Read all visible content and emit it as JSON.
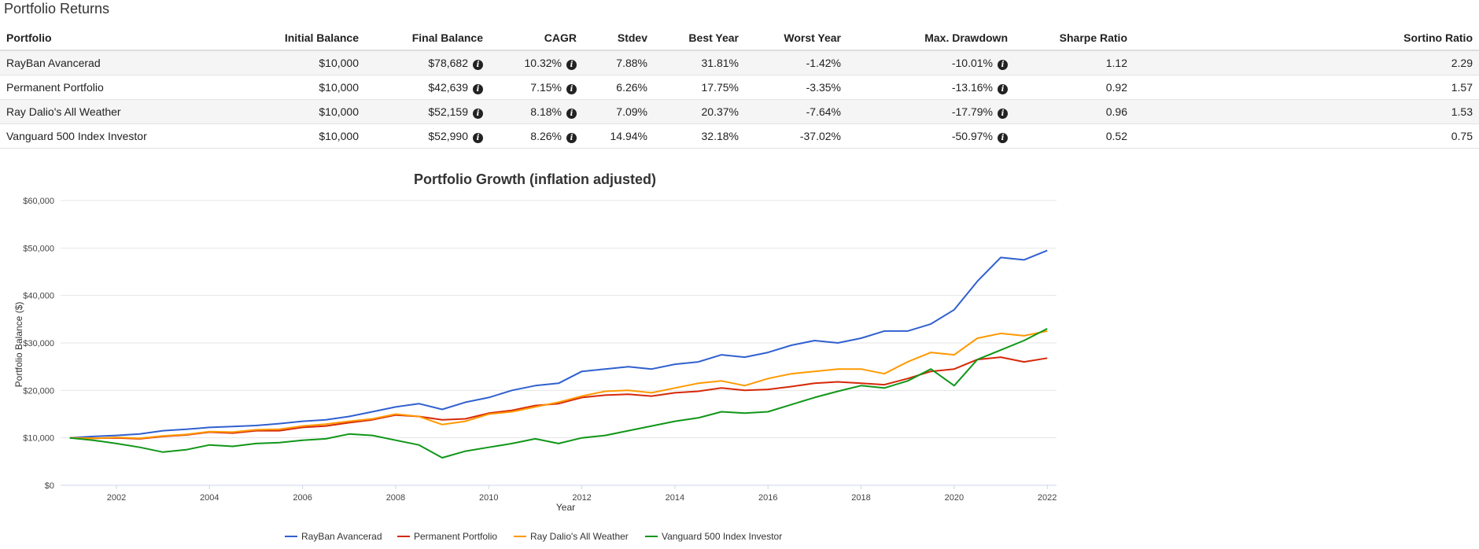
{
  "section_title": "Portfolio Returns",
  "table": {
    "headers": [
      "Portfolio",
      "Initial Balance",
      "Final Balance",
      "CAGR",
      "Stdev",
      "Best Year",
      "Worst Year",
      "Max. Drawdown",
      "Sharpe Ratio",
      "Sortino Ratio"
    ],
    "rows": [
      {
        "portfolio": "RayBan Avancerad",
        "initial": "$10,000",
        "final": "$78,682",
        "cagr": "10.32%",
        "stdev": "7.88%",
        "best": "31.81%",
        "worst": "-1.42%",
        "drawdown": "-10.01%",
        "sharpe": "1.12",
        "sortino": "2.29"
      },
      {
        "portfolio": "Permanent Portfolio",
        "initial": "$10,000",
        "final": "$42,639",
        "cagr": "7.15%",
        "stdev": "6.26%",
        "best": "17.75%",
        "worst": "-3.35%",
        "drawdown": "-13.16%",
        "sharpe": "0.92",
        "sortino": "1.57"
      },
      {
        "portfolio": "Ray Dalio's All Weather",
        "initial": "$10,000",
        "final": "$52,159",
        "cagr": "8.18%",
        "stdev": "7.09%",
        "best": "20.37%",
        "worst": "-7.64%",
        "drawdown": "-17.79%",
        "sharpe": "0.96",
        "sortino": "1.53"
      },
      {
        "portfolio": "Vanguard 500 Index Investor",
        "initial": "$10,000",
        "final": "$52,990",
        "cagr": "8.26%",
        "stdev": "14.94%",
        "best": "32.18%",
        "worst": "-37.02%",
        "drawdown": "-50.97%",
        "sharpe": "0.52",
        "sortino": "0.75"
      }
    ]
  },
  "info_icon_glyph": "i",
  "chart_data": {
    "type": "line",
    "title": "Portfolio Growth (inflation adjusted)",
    "xlabel": "Year",
    "ylabel": "Portfolio Balance ($)",
    "xlim": [
      2000.8,
      2022.2
    ],
    "ylim": [
      0,
      60000
    ],
    "x_ticks": [
      2002,
      2004,
      2006,
      2008,
      2010,
      2012,
      2014,
      2016,
      2018,
      2020,
      2022
    ],
    "y_ticks": [
      0,
      10000,
      20000,
      30000,
      40000,
      50000,
      60000
    ],
    "y_tick_labels": [
      "$0",
      "$10,000",
      "$20,000",
      "$30,000",
      "$40,000",
      "$50,000",
      "$60,000"
    ],
    "grid": "horizontal",
    "legend": "bottom",
    "x": [
      2001,
      2001.5,
      2002,
      2002.5,
      2003,
      2003.5,
      2004,
      2004.5,
      2005,
      2005.5,
      2006,
      2006.5,
      2007,
      2007.5,
      2008,
      2008.5,
      2009,
      2009.5,
      2010,
      2010.5,
      2011,
      2011.5,
      2012,
      2012.5,
      2013,
      2013.5,
      2014,
      2014.5,
      2015,
      2015.5,
      2016,
      2016.5,
      2017,
      2017.5,
      2018,
      2018.5,
      2019,
      2019.5,
      2020,
      2020.5,
      2021,
      2021.5,
      2022
    ],
    "series": [
      {
        "name": "RayBan Avancerad",
        "color": "#3060cf",
        "values": [
          10000,
          10300,
          10500,
          10800,
          11500,
          11800,
          12200,
          12400,
          12600,
          13000,
          13500,
          13800,
          14500,
          15500,
          16500,
          17200,
          16000,
          17500,
          18500,
          20000,
          21000,
          21500,
          24000,
          24500,
          25000,
          24500,
          25500,
          26000,
          27500,
          27000,
          28000,
          29500,
          30500,
          30000,
          31000,
          32500,
          32500,
          34000,
          37000,
          43000,
          48000,
          47500,
          49500
        ]
      },
      {
        "name": "Permanent Portfolio",
        "color": "#d62808",
        "values": [
          10000,
          9900,
          10000,
          9800,
          10300,
          10600,
          11200,
          11000,
          11500,
          11500,
          12200,
          12500,
          13200,
          13800,
          14800,
          14500,
          13800,
          14000,
          15200,
          15800,
          16800,
          17200,
          18500,
          19000,
          19200,
          18800,
          19500,
          19800,
          20500,
          20000,
          20200,
          20800,
          21500,
          21800,
          21500,
          21200,
          22500,
          24000,
          24500,
          26500,
          27000,
          26000,
          26800
        ]
      },
      {
        "name": "Ray Dalio's All Weather",
        "color": "#ff9900",
        "values": [
          10000,
          9900,
          10100,
          9900,
          10400,
          10700,
          11300,
          11200,
          11700,
          11800,
          12500,
          12900,
          13500,
          14000,
          15000,
          14500,
          12800,
          13500,
          15000,
          15500,
          16500,
          17500,
          18800,
          19800,
          20000,
          19500,
          20500,
          21500,
          22000,
          21000,
          22500,
          23500,
          24000,
          24500,
          24500,
          23500,
          26000,
          28000,
          27500,
          31000,
          32000,
          31500,
          32500
        ]
      },
      {
        "name": "Vanguard 500 Index Investor",
        "color": "#109618",
        "values": [
          10000,
          9500,
          8800,
          8000,
          7000,
          7500,
          8500,
          8200,
          8800,
          9000,
          9500,
          9800,
          10800,
          10500,
          9500,
          8500,
          5800,
          7200,
          8000,
          8800,
          9800,
          8800,
          10000,
          10500,
          11500,
          12500,
          13500,
          14200,
          15500,
          15200,
          15500,
          17000,
          18500,
          19800,
          21000,
          20500,
          22000,
          24500,
          21000,
          26500,
          28500,
          30500,
          33000
        ]
      }
    ]
  }
}
